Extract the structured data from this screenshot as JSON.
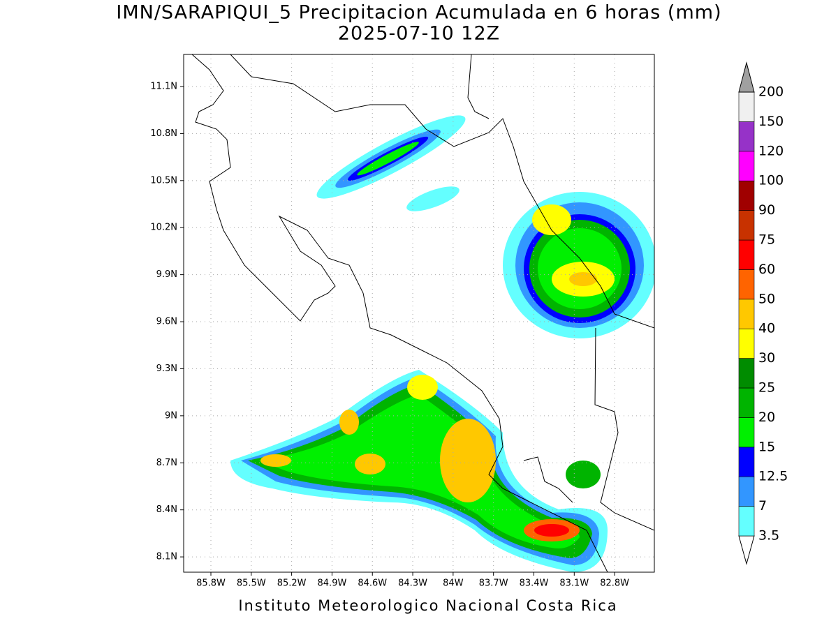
{
  "title": "IMN/SARAPIQUI_5 Precipitacion Acumulada en 6 horas (mm)",
  "subtitle": "2025-07-10 12Z",
  "footer": "Instituto Meteorologico Nacional Costa Rica",
  "map": {
    "lat_ticks": [
      {
        "value": 11.1,
        "label": "11.1N"
      },
      {
        "value": 10.8,
        "label": "10.8N"
      },
      {
        "value": 10.5,
        "label": "10.5N"
      },
      {
        "value": 10.2,
        "label": "10.2N"
      },
      {
        "value": 9.9,
        "label": "9.9N"
      },
      {
        "value": 9.6,
        "label": "9.6N"
      },
      {
        "value": 9.3,
        "label": "9.3N"
      },
      {
        "value": 9,
        "label": "9N"
      },
      {
        "value": 8.7,
        "label": "8.7N"
      },
      {
        "value": 8.4,
        "label": "8.4N"
      },
      {
        "value": 8.1,
        "label": "8.1N"
      }
    ],
    "lon_ticks": [
      {
        "value": -85.8,
        "label": "85.8W"
      },
      {
        "value": -85.5,
        "label": "85.5W"
      },
      {
        "value": -85.2,
        "label": "85.2W"
      },
      {
        "value": -84.9,
        "label": "84.9W"
      },
      {
        "value": -84.6,
        "label": "84.6W"
      },
      {
        "value": -84.3,
        "label": "84.3W"
      },
      {
        "value": -84,
        "label": "84W"
      },
      {
        "value": -83.7,
        "label": "83.7W"
      },
      {
        "value": -83.4,
        "label": "83.4W"
      },
      {
        "value": -83.1,
        "label": "83.1W"
      },
      {
        "value": -82.8,
        "label": "82.8W"
      }
    ]
  },
  "colorbar": {
    "levels": [
      3.5,
      7,
      12.5,
      15,
      20,
      25,
      30,
      40,
      50,
      60,
      75,
      90,
      100,
      120,
      150,
      200
    ],
    "colors": [
      "#ffffff",
      "#64ffff",
      "#3296ff",
      "#0000ff",
      "#00f000",
      "#00b400",
      "#008c00",
      "#ffff00",
      "#ffc800",
      "#ff6400",
      "#ff0000",
      "#c83200",
      "#a00000",
      "#ff00ff",
      "#9632c8",
      "#f0f0f0",
      "#a0a0a0"
    ]
  }
}
